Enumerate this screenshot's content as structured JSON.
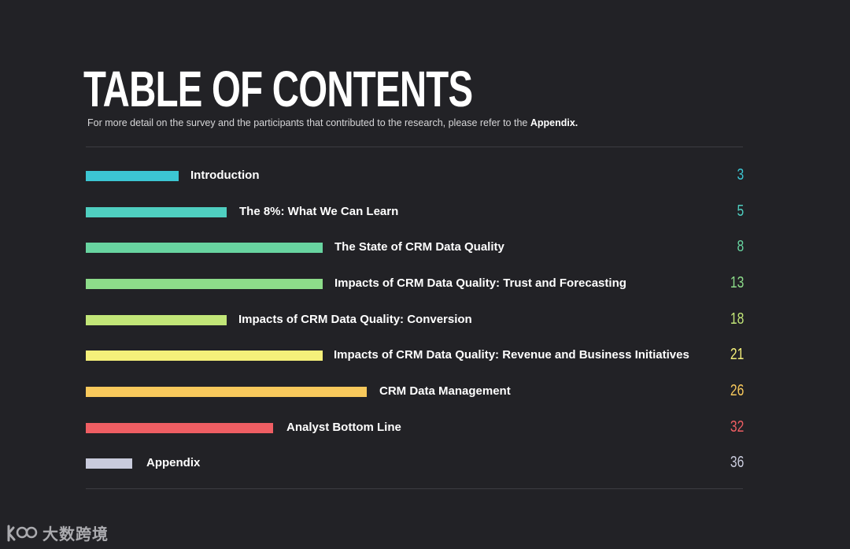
{
  "header": {
    "title": "TABLE OF CONTENTS",
    "subtitle_prefix": "For more detail on the survey and the participants that contributed to the research, please refer to the ",
    "subtitle_link": "Appendix."
  },
  "toc": [
    {
      "label": "Introduction",
      "page": "3",
      "color": "#3cc6d3"
    },
    {
      "label": "The 8%: What We Can Learn",
      "page": "5",
      "color": "#4fcfc0"
    },
    {
      "label": "The State of CRM Data Quality",
      "page": "8",
      "color": "#68d4a0"
    },
    {
      "label": "Impacts of CRM Data Quality: Trust and Forecasting",
      "page": "13",
      "color": "#8ddc8a"
    },
    {
      "label": "Impacts of CRM Data Quality: Conversion",
      "page": "18",
      "color": "#c2e678"
    },
    {
      "label": "Impacts of CRM Data Quality: Revenue and Business Initiatives",
      "page": "21",
      "color": "#f5f07a"
    },
    {
      "label": "CRM Data Management",
      "page": "26",
      "color": "#f8c95c"
    },
    {
      "label": "Analyst Bottom Line",
      "page": "32",
      "color": "#ef5e63"
    },
    {
      "label": "Appendix",
      "page": "36",
      "color": "#c9cbdc"
    }
  ],
  "watermark": {
    "text": "大数跨境",
    "icon": "watermark-logo-icon"
  }
}
